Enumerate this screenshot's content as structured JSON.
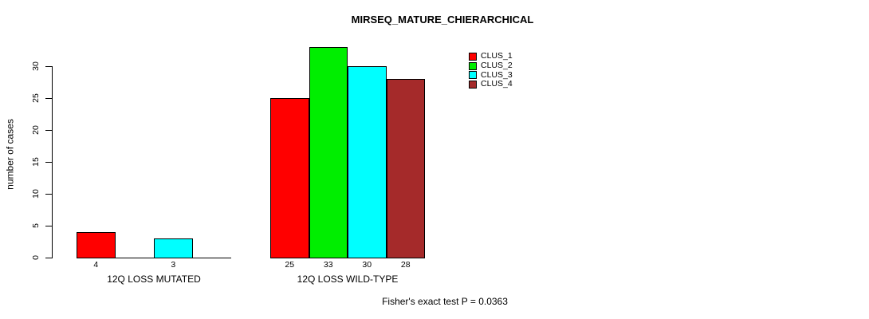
{
  "chart_data": {
    "type": "bar",
    "title": "MIRSEQ_MATURE_CHIERARCHICAL",
    "ylabel": "number of cases",
    "xlabel": "",
    "ylim": [
      0,
      30
    ],
    "yticks": [
      0,
      5,
      10,
      15,
      20,
      25,
      30
    ],
    "categories": [
      "12Q LOSS MUTATED",
      "12Q LOSS WILD-TYPE"
    ],
    "series": [
      {
        "name": "CLUS_1",
        "color": "#ff0000",
        "values": [
          4,
          25
        ]
      },
      {
        "name": "CLUS_2",
        "color": "#00ee00",
        "values": [
          0,
          33
        ]
      },
      {
        "name": "CLUS_3",
        "color": "#00ffff",
        "values": [
          3,
          30
        ]
      },
      {
        "name": "CLUS_4",
        "color": "#a52a2a",
        "values": [
          0,
          28
        ]
      }
    ],
    "bar_value_labels_shown_for_nonzero_only": true,
    "grid": false,
    "legend_position": "top-right",
    "annotation": "Fisher's exact test P = 0.0363"
  }
}
